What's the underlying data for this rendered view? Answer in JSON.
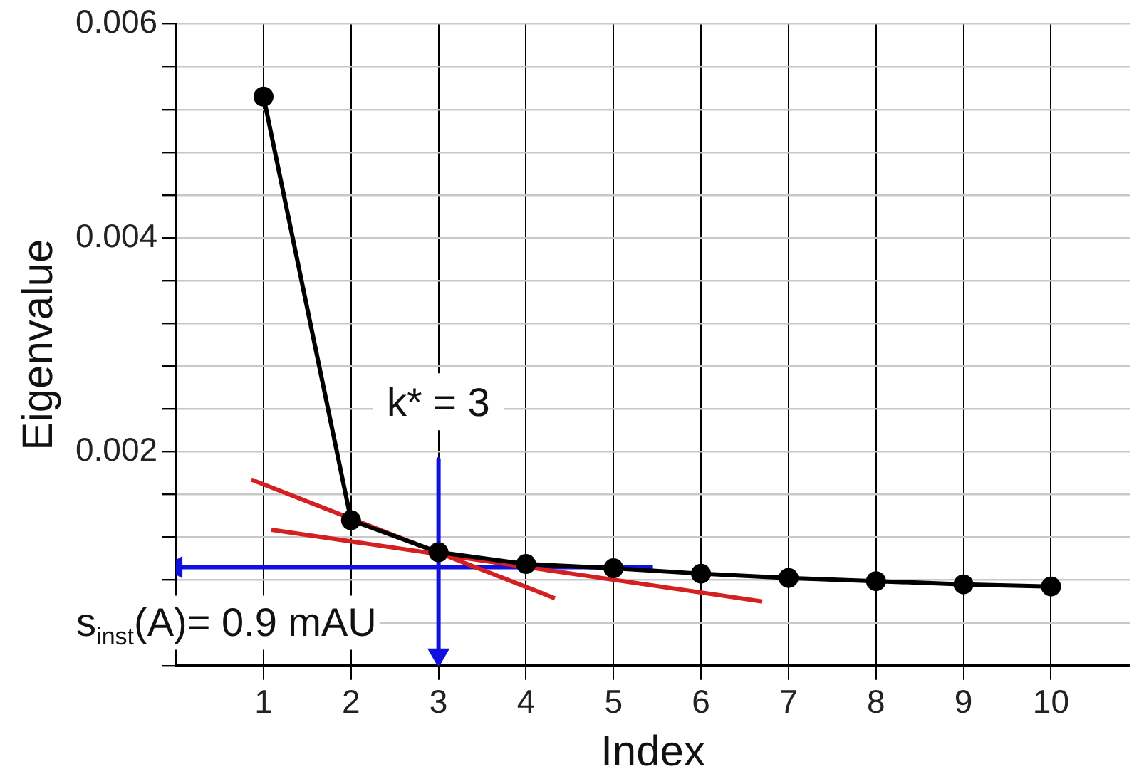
{
  "chart_data": {
    "type": "line",
    "xlabel": "Index",
    "ylabel": "Eigenvalue",
    "xlim": [
      0,
      10.9
    ],
    "xticks": [
      1,
      2,
      3,
      4,
      5,
      6,
      7,
      8,
      9,
      10
    ],
    "ylim": [
      0,
      0.006
    ],
    "yticks": [
      {
        "value": 0,
        "label": null
      },
      {
        "value": 0.0004,
        "label": null
      },
      {
        "value": 0.0008,
        "label": null
      },
      {
        "value": 0.0012,
        "label": null
      },
      {
        "value": 0.0016,
        "label": null
      },
      0.002,
      {
        "value": 0.0024,
        "label": null
      },
      {
        "value": 0.0028,
        "label": null
      },
      {
        "value": 0.0032,
        "label": null
      },
      {
        "value": 0.0036,
        "label": null
      },
      0.004,
      {
        "value": 0.0044,
        "label": null
      },
      {
        "value": 0.0048,
        "label": null
      },
      {
        "value": 0.0052,
        "label": null
      },
      {
        "value": 0.0056,
        "label": null
      },
      0.006
    ],
    "grid": true,
    "legend": false,
    "series": [
      {
        "color": "#000000",
        "marker": "circle",
        "x": [
          1,
          2,
          3,
          4,
          5,
          6,
          7,
          8,
          9,
          10
        ],
        "values": [
          0.00532,
          0.00136,
          0.00106,
          0.00095,
          0.00091,
          0.00086,
          0.00082,
          0.00079,
          0.00076,
          0.00074
        ]
      },
      {
        "color": "#d42020",
        "marker": "none",
        "x": [
          0.86,
          4.33
        ],
        "values": [
          0.00174,
          0.00063
        ]
      },
      {
        "color": "#d42020",
        "marker": "none",
        "x": [
          1.09,
          6.7
        ],
        "values": [
          0.00127,
          0.0006
        ]
      },
      {
        "color": "#1010e0",
        "marker": "triangle",
        "x": [
          5.45,
          0
        ],
        "values": [
          0.00092,
          0.00092
        ]
      },
      {
        "color": "#1010e0",
        "marker": "triangle",
        "x": [
          3,
          3
        ],
        "values": [
          0.00193,
          0.0001
        ]
      }
    ],
    "annotations": [
      "k* = 3",
      {
        "text": "s$_{inst}$(A)= 0.9 mAU",
        "x": 0,
        "y": 0.00092
      }
    ]
  }
}
